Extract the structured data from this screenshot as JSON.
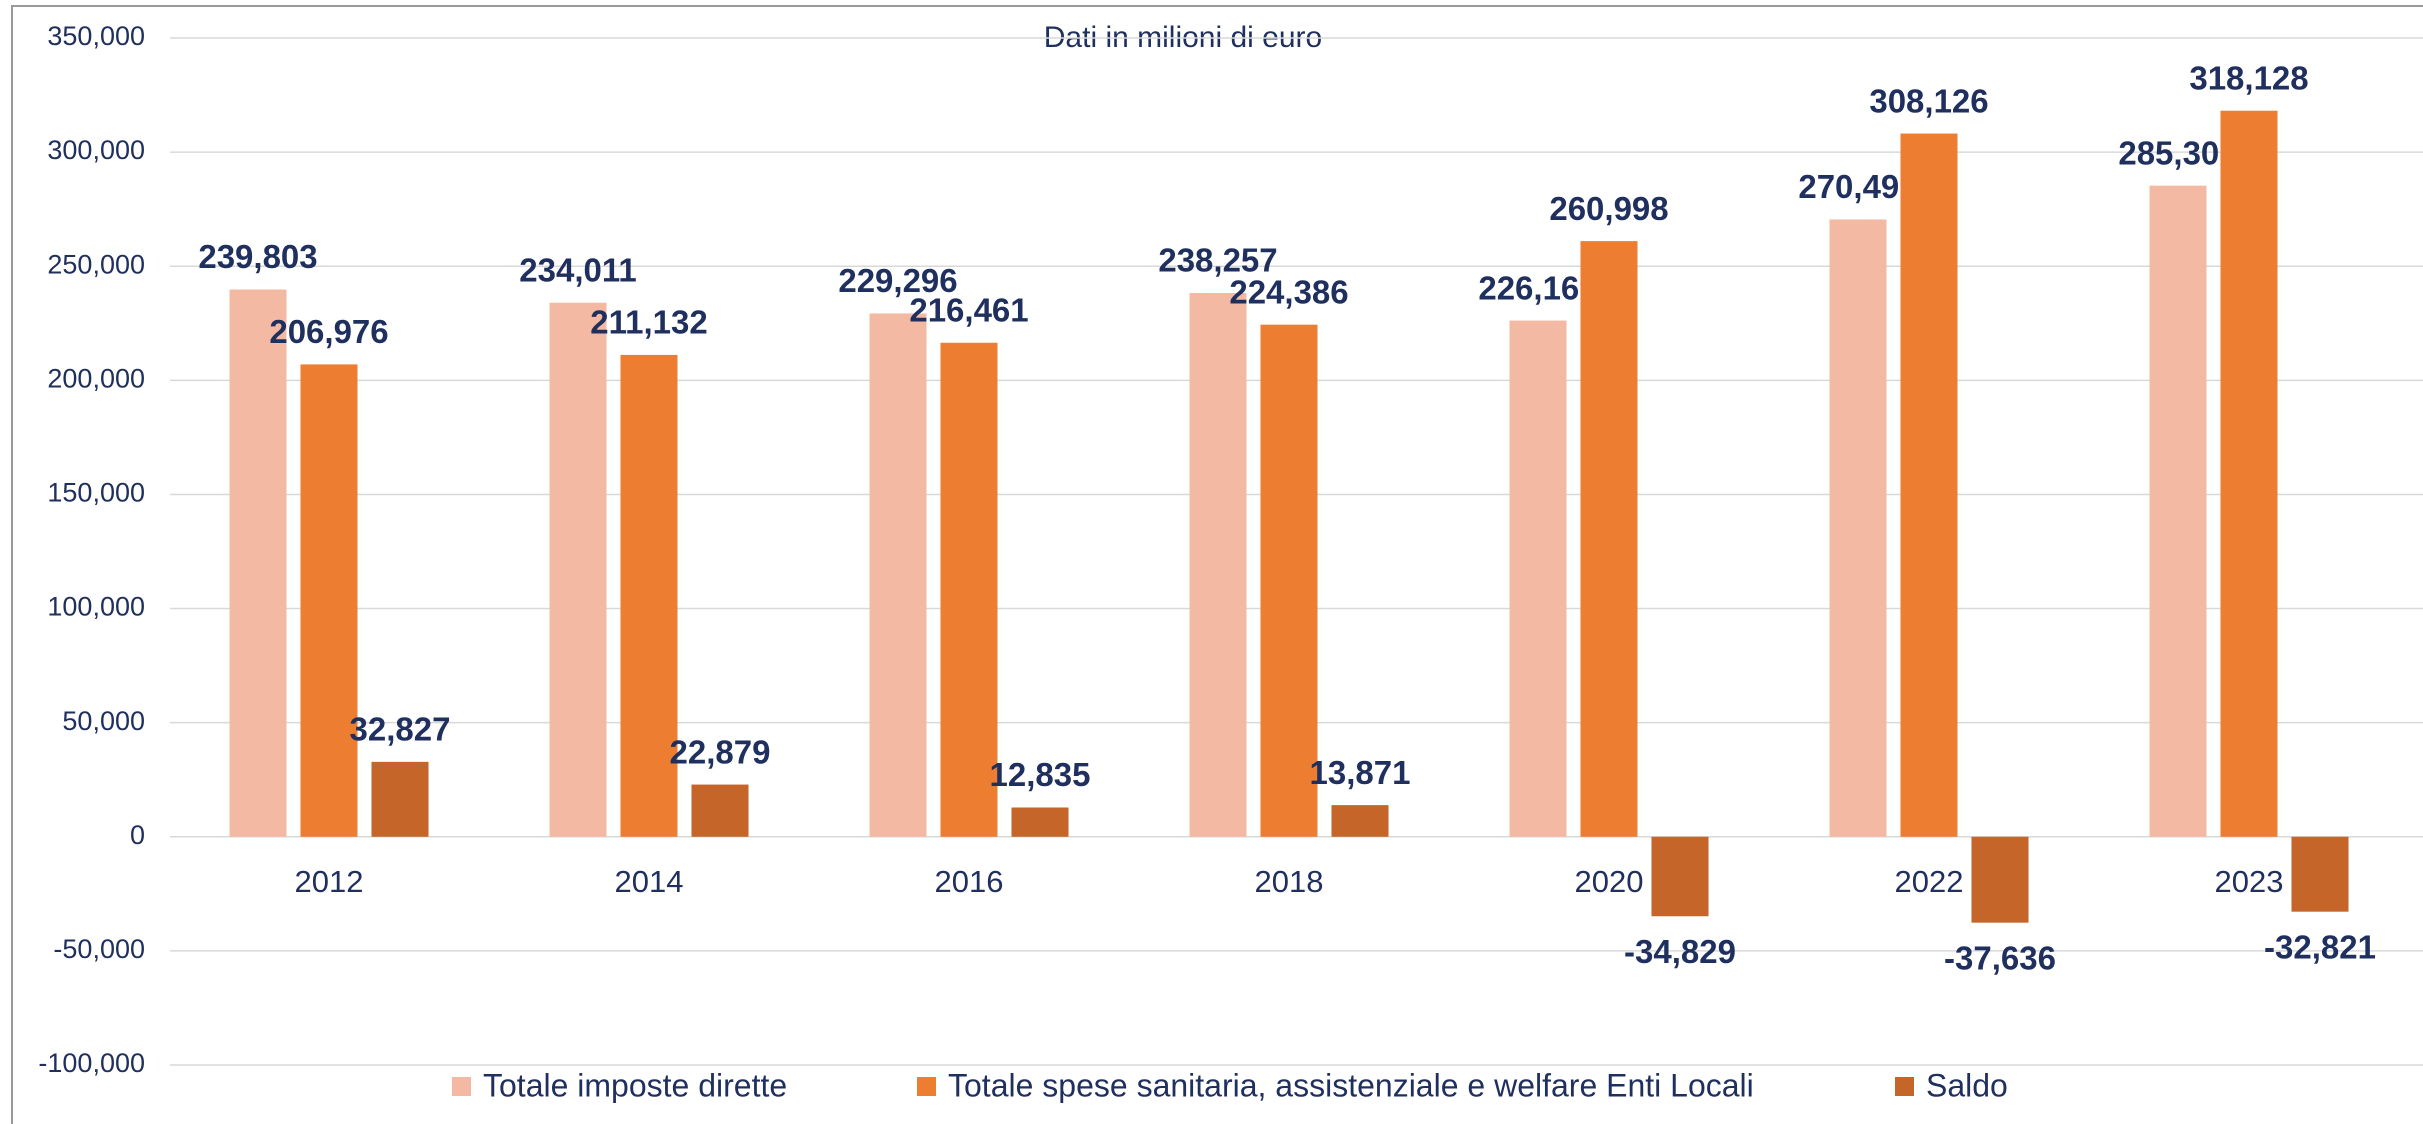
{
  "chart_data": {
    "type": "bar",
    "title": "Dati in milioni di euro",
    "categories": [
      "2012",
      "2014",
      "2016",
      "2018",
      "2020",
      "2022",
      "2023"
    ],
    "series": [
      {
        "name": "Totale imposte dirette",
        "color": "#f4b9a2",
        "values": [
          239803,
          234011,
          229296,
          238257,
          226169,
          270490,
          285307
        ],
        "value_labels": [
          "239,803",
          "234,011",
          "229,296",
          "238,257",
          "226,169",
          "270,490",
          "285,307"
        ]
      },
      {
        "name": "Totale spese sanitaria, assistenziale e welfare Enti Locali",
        "color": "#ed7d31",
        "values": [
          206976,
          211132,
          216461,
          224386,
          260998,
          308126,
          318128
        ],
        "value_labels": [
          "206,976",
          "211,132",
          "216,461",
          "224,386",
          "260,998",
          "308,126",
          "318,128"
        ]
      },
      {
        "name": "Saldo",
        "color": "#c5652a",
        "values": [
          32827,
          22879,
          12835,
          13871,
          -34829,
          -37636,
          -32821
        ],
        "value_labels": [
          "32,827",
          "22,879",
          "12,835",
          "13,871",
          "-34,829",
          "-37,636",
          "-32,821"
        ]
      }
    ],
    "ylim": [
      -100000,
      350000
    ],
    "yticks": [
      {
        "value": -100000,
        "label": "-100,000"
      },
      {
        "value": -50000,
        "label": "-50,000"
      },
      0,
      {
        "value": 50000,
        "label": "50,000"
      },
      {
        "value": 100000,
        "label": "100,000"
      },
      {
        "value": 150000,
        "label": "150,000"
      },
      {
        "value": 200000,
        "label": "200,000"
      },
      {
        "value": 250000,
        "label": "250,000"
      },
      {
        "value": 300000,
        "label": "300,000"
      },
      {
        "value": 350000,
        "label": "350,000"
      }
    ],
    "grid": true,
    "legend": "bottom"
  }
}
